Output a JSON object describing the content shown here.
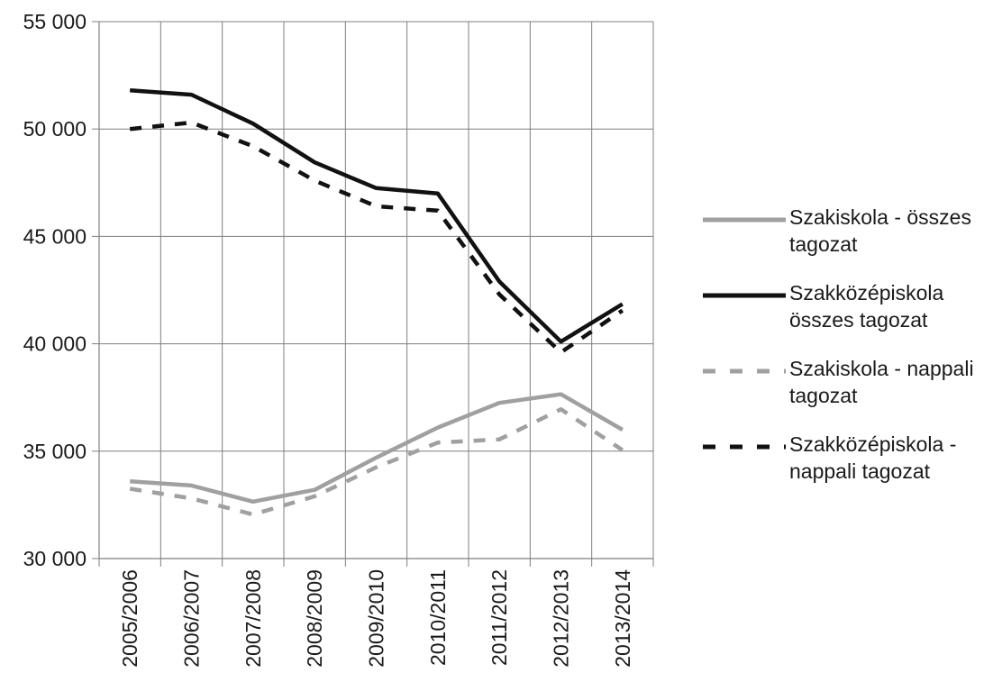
{
  "chart_data": {
    "type": "line",
    "categories": [
      "2005/2006",
      "2006/2007",
      "2007/2008",
      "2008/2009",
      "2009/2010",
      "2010/2011",
      "2011/2012",
      "2012/2013",
      "2013/2014"
    ],
    "ylim": [
      30000,
      55000
    ],
    "yticks": [
      30000,
      35000,
      40000,
      45000,
      50000,
      55000
    ],
    "ytick_labels": [
      "30 000",
      "35 000",
      "40 000",
      "45 000",
      "50 000",
      "55 000"
    ],
    "grid": true,
    "legend_position": "right",
    "series": [
      {
        "name": "Szakiskola - összes tagozat",
        "style": "solid",
        "color": "#a0a0a0",
        "values": [
          33600,
          33400,
          32650,
          33200,
          34700,
          36100,
          37250,
          37650,
          36000
        ]
      },
      {
        "name": "Szakközépiskola összes tagozat",
        "style": "solid",
        "color": "#111111",
        "values": [
          51800,
          51600,
          50250,
          48450,
          47250,
          47000,
          42900,
          40100,
          41850
        ]
      },
      {
        "name": "Szakiskola - nappali tagozat",
        "style": "dashed",
        "color": "#a0a0a0",
        "values": [
          33250,
          32800,
          32050,
          32900,
          34250,
          35400,
          35550,
          36950,
          35050
        ]
      },
      {
        "name": "Szakközépiskola - nappali tagozat",
        "style": "dashed",
        "color": "#111111",
        "values": [
          50000,
          50300,
          49200,
          47600,
          46400,
          46200,
          42300,
          39600,
          41550
        ]
      }
    ]
  }
}
